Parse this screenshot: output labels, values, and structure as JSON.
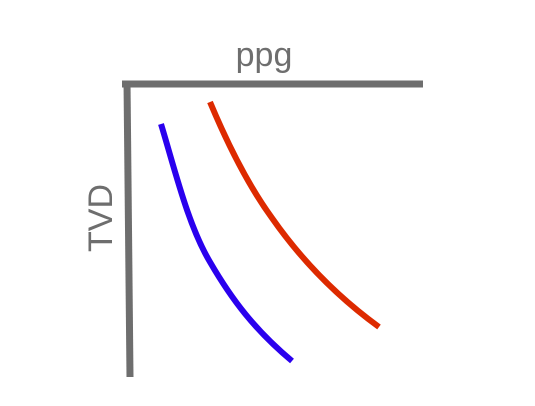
{
  "diagram": {
    "top_axis_label": "ppg",
    "left_axis_label": "TVD",
    "colors": {
      "axis": "#6e6e6e",
      "curve_blue": "#2a00ee",
      "curve_red": "#dd2a00",
      "label": "#6e6e6e"
    }
  }
}
